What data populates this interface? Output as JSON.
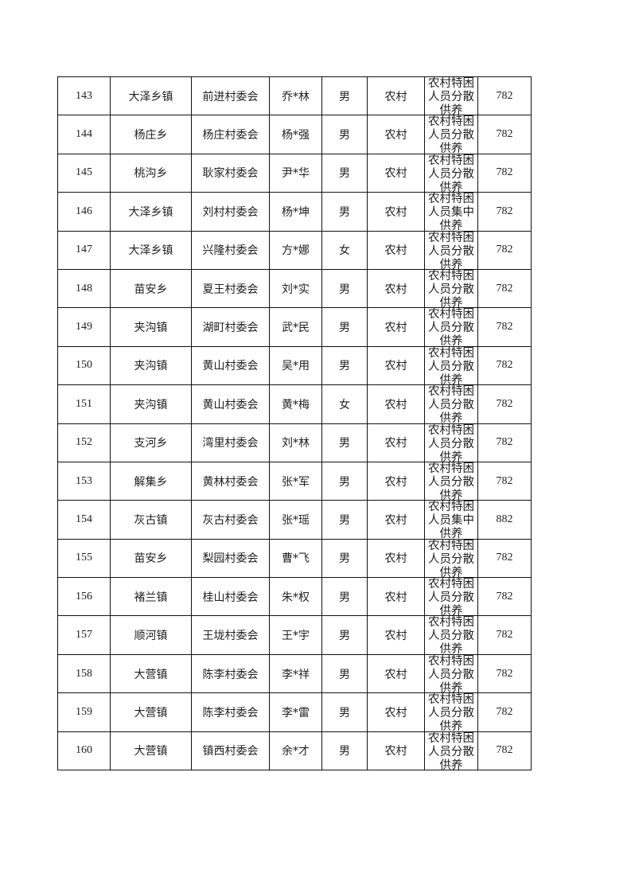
{
  "table": {
    "rows": [
      [
        "143",
        "大泽乡镇",
        "前进村委会",
        "乔*林",
        "男",
        "农村",
        "农村特困人员分散供养",
        "782"
      ],
      [
        "144",
        "杨庄乡",
        "杨庄村委会",
        "杨*强",
        "男",
        "农村",
        "农村特困人员分散供养",
        "782"
      ],
      [
        "145",
        "桃沟乡",
        "耿家村委会",
        "尹*华",
        "男",
        "农村",
        "农村特困人员分散供养",
        "782"
      ],
      [
        "146",
        "大泽乡镇",
        "刘村村委会",
        "杨*坤",
        "男",
        "农村",
        "农村特困人员集中供养",
        "782"
      ],
      [
        "147",
        "大泽乡镇",
        "兴隆村委会",
        "方*娜",
        "女",
        "农村",
        "农村特困人员分散供养",
        "782"
      ],
      [
        "148",
        "苗安乡",
        "夏王村委会",
        "刘*实",
        "男",
        "农村",
        "农村特困人员分散供养",
        "782"
      ],
      [
        "149",
        "夹沟镇",
        "湖町村委会",
        "武*民",
        "男",
        "农村",
        "农村特困人员分散供养",
        "782"
      ],
      [
        "150",
        "夹沟镇",
        "黄山村委会",
        "吴*用",
        "男",
        "农村",
        "农村特困人员分散供养",
        "782"
      ],
      [
        "151",
        "夹沟镇",
        "黄山村委会",
        "黄*梅",
        "女",
        "农村",
        "农村特困人员分散供养",
        "782"
      ],
      [
        "152",
        "支河乡",
        "湾里村委会",
        "刘*林",
        "男",
        "农村",
        "农村特困人员分散供养",
        "782"
      ],
      [
        "153",
        "解集乡",
        "黄林村委会",
        "张*军",
        "男",
        "农村",
        "农村特困人员分散供养",
        "782"
      ],
      [
        "154",
        "灰古镇",
        "灰古村委会",
        "张*瑶",
        "男",
        "农村",
        "农村特困人员集中供养",
        "882"
      ],
      [
        "155",
        "苗安乡",
        "梨园村委会",
        "曹*飞",
        "男",
        "农村",
        "农村特困人员分散供养",
        "782"
      ],
      [
        "156",
        "褚兰镇",
        "桂山村委会",
        "朱*权",
        "男",
        "农村",
        "农村特困人员分散供养",
        "782"
      ],
      [
        "157",
        "顺河镇",
        "王垅村委会",
        "王*宇",
        "男",
        "农村",
        "农村特困人员分散供养",
        "782"
      ],
      [
        "158",
        "大营镇",
        "陈李村委会",
        "李*祥",
        "男",
        "农村",
        "农村特困人员分散供养",
        "782"
      ],
      [
        "159",
        "大营镇",
        "陈李村委会",
        "李*雷",
        "男",
        "农村",
        "农村特困人员分散供养",
        "782"
      ],
      [
        "160",
        "大营镇",
        "镇西村委会",
        "余*才",
        "男",
        "农村",
        "农村特困人员分散供养",
        "782"
      ]
    ]
  }
}
